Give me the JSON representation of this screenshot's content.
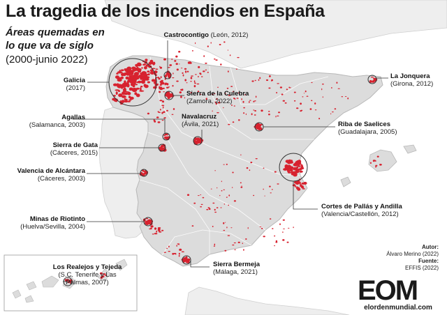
{
  "header": {
    "title": "La tragedia de los incendios en España",
    "subtitle_line1": "Áreas quemadas en",
    "subtitle_line2": "lo que va de siglo",
    "period": "(2000-junio 2022)"
  },
  "fires": [
    {
      "name": "Galicia",
      "detail": "(2017)"
    },
    {
      "name": "Castrocontigo",
      "detail": "(León, 2012)"
    },
    {
      "name": "Sierra de la Culebra",
      "detail": "(Zamora, 2022)"
    },
    {
      "name": "La Jonquera",
      "detail": "(Girona, 2012)"
    },
    {
      "name": "Navalacruz",
      "detail": "(Ávila, 2021)"
    },
    {
      "name": "Agallas",
      "detail": "(Salamanca, 2003)"
    },
    {
      "name": "Riba de Saelices",
      "detail": "(Guadalajara, 2005)"
    },
    {
      "name": "Sierra de Gata",
      "detail": "(Cáceres, 2015)"
    },
    {
      "name": "Valencia de Alcántara",
      "detail": "(Cáceres, 2003)"
    },
    {
      "name": "Cortes de Pallás y Andilla",
      "detail": "(Valencia/Castellón, 2012)"
    },
    {
      "name": "Minas de Riotinto",
      "detail": "(Huelva/Sevilla, 2004)"
    },
    {
      "name": "Sierra Bermeja",
      "detail": "(Málaga, 2021)"
    },
    {
      "name": "Los Realejos y Tejeda",
      "detail_line1": "(S.C. Tenerife y Las",
      "detail_line2": "Palmas, 2007)"
    }
  ],
  "credits": {
    "author_label": "Autor:",
    "author": "Álvaro Merino (2022)",
    "source_label": "Fuente:",
    "source": "EFFIS (2022)"
  },
  "brand": {
    "logo_letters": "EOM",
    "site": "elordenmundial.com"
  },
  "colors": {
    "burned": "#d7222f",
    "spain_land": "#dcdcdc",
    "neighbor_land": "#eeeeee",
    "sea": "#ffffff",
    "callout": "#444444"
  }
}
